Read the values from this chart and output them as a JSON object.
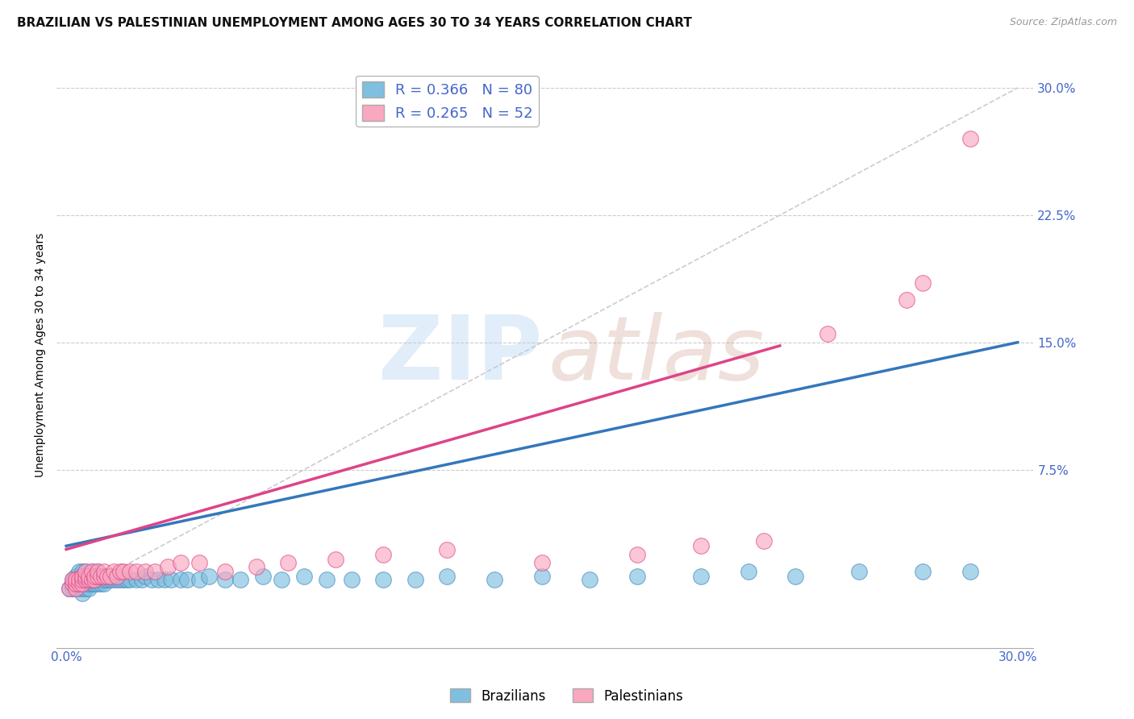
{
  "title": "BRAZILIAN VS PALESTINIAN UNEMPLOYMENT AMONG AGES 30 TO 34 YEARS CORRELATION CHART",
  "source": "Source: ZipAtlas.com",
  "ylabel": "Unemployment Among Ages 30 to 34 years",
  "yticks": [
    0.0,
    0.075,
    0.15,
    0.225,
    0.3
  ],
  "ytick_labels": [
    "",
    "7.5%",
    "15.0%",
    "22.5%",
    "30.0%"
  ],
  "xlim": [
    -0.003,
    0.305
  ],
  "ylim": [
    -0.03,
    0.315
  ],
  "legend1_brazil": "R = 0.366   N = 80",
  "legend1_palestine": "R = 0.265   N = 52",
  "brazil_scatter_x": [
    0.001,
    0.002,
    0.002,
    0.002,
    0.003,
    0.003,
    0.003,
    0.003,
    0.004,
    0.004,
    0.004,
    0.004,
    0.005,
    0.005,
    0.005,
    0.005,
    0.005,
    0.005,
    0.006,
    0.006,
    0.006,
    0.006,
    0.006,
    0.007,
    0.007,
    0.007,
    0.007,
    0.008,
    0.008,
    0.008,
    0.009,
    0.009,
    0.01,
    0.01,
    0.01,
    0.011,
    0.011,
    0.012,
    0.012,
    0.013,
    0.013,
    0.014,
    0.015,
    0.015,
    0.016,
    0.017,
    0.018,
    0.019,
    0.02,
    0.022,
    0.024,
    0.025,
    0.027,
    0.029,
    0.031,
    0.033,
    0.036,
    0.038,
    0.042,
    0.045,
    0.05,
    0.055,
    0.062,
    0.068,
    0.075,
    0.082,
    0.09,
    0.1,
    0.11,
    0.12,
    0.135,
    0.15,
    0.165,
    0.18,
    0.2,
    0.215,
    0.23,
    0.25,
    0.27,
    0.285
  ],
  "brazil_scatter_y": [
    0.005,
    0.005,
    0.008,
    0.01,
    0.005,
    0.008,
    0.01,
    0.012,
    0.005,
    0.008,
    0.01,
    0.015,
    0.002,
    0.005,
    0.008,
    0.01,
    0.012,
    0.015,
    0.005,
    0.008,
    0.01,
    0.012,
    0.015,
    0.005,
    0.008,
    0.01,
    0.012,
    0.008,
    0.01,
    0.015,
    0.008,
    0.01,
    0.008,
    0.01,
    0.015,
    0.008,
    0.01,
    0.008,
    0.01,
    0.01,
    0.012,
    0.01,
    0.01,
    0.012,
    0.01,
    0.01,
    0.01,
    0.01,
    0.01,
    0.01,
    0.01,
    0.012,
    0.01,
    0.01,
    0.01,
    0.01,
    0.01,
    0.01,
    0.01,
    0.012,
    0.01,
    0.01,
    0.012,
    0.01,
    0.012,
    0.01,
    0.01,
    0.01,
    0.01,
    0.012,
    0.01,
    0.012,
    0.01,
    0.012,
    0.012,
    0.015,
    0.012,
    0.015,
    0.015,
    0.015
  ],
  "palestine_scatter_x": [
    0.001,
    0.002,
    0.002,
    0.003,
    0.003,
    0.003,
    0.004,
    0.004,
    0.005,
    0.005,
    0.005,
    0.006,
    0.006,
    0.006,
    0.007,
    0.007,
    0.008,
    0.008,
    0.009,
    0.009,
    0.01,
    0.01,
    0.011,
    0.012,
    0.012,
    0.013,
    0.014,
    0.015,
    0.016,
    0.017,
    0.018,
    0.02,
    0.022,
    0.025,
    0.028,
    0.032,
    0.036,
    0.042,
    0.05,
    0.06,
    0.07,
    0.085,
    0.1,
    0.12,
    0.15,
    0.18,
    0.2,
    0.22,
    0.24,
    0.265,
    0.27,
    0.285
  ],
  "palestine_scatter_y": [
    0.005,
    0.008,
    0.01,
    0.005,
    0.008,
    0.01,
    0.008,
    0.01,
    0.008,
    0.01,
    0.012,
    0.01,
    0.012,
    0.015,
    0.01,
    0.012,
    0.01,
    0.015,
    0.01,
    0.012,
    0.012,
    0.015,
    0.012,
    0.012,
    0.015,
    0.012,
    0.012,
    0.015,
    0.012,
    0.015,
    0.015,
    0.015,
    0.015,
    0.015,
    0.015,
    0.018,
    0.02,
    0.02,
    0.015,
    0.018,
    0.02,
    0.022,
    0.025,
    0.028,
    0.02,
    0.025,
    0.03,
    0.033,
    0.155,
    0.175,
    0.185,
    0.27
  ],
  "brazil_line_x": [
    0.0,
    0.3
  ],
  "brazil_line_y": [
    0.03,
    0.15
  ],
  "palestine_line_x": [
    0.0,
    0.225
  ],
  "palestine_line_y": [
    0.028,
    0.148
  ],
  "diag_line_x": [
    0.0,
    0.3
  ],
  "diag_line_y": [
    0.0,
    0.3
  ],
  "brazil_color": "#7fbfdf",
  "brazil_edge": "#4488bb",
  "brazil_line_color": "#3377bb",
  "palestine_color": "#f9a8c0",
  "palestine_edge": "#dd4488",
  "palestine_line_color": "#dd4488",
  "scatter_alpha": 0.65,
  "scatter_size": 200,
  "bg_color": "#ffffff",
  "grid_color": "#cccccc",
  "title_fontsize": 11,
  "tick_label_color": "#4466cc",
  "axis_label_fontsize": 10
}
